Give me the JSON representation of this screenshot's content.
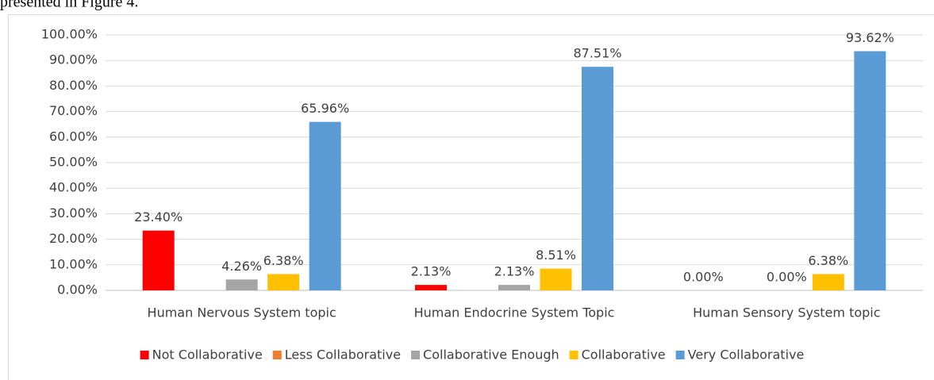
{
  "page_text": "presented in Figure 4.",
  "chart_data": {
    "type": "bar",
    "categories": [
      "Human Nervous System topic",
      "Human Endocrine System Topic",
      "Human Sensory System topic"
    ],
    "series": [
      {
        "name": "Not Collaborative",
        "color": "#ff0000",
        "values": [
          23.4,
          2.13,
          0
        ],
        "value_labels": [
          "23.40%",
          "2.13%",
          "0.00%"
        ]
      },
      {
        "name": "Less Collaborative",
        "color": "#ed7d31",
        "values": [
          0,
          0,
          0
        ]
      },
      {
        "name": "Collaborative Enough",
        "color": "#a5a5a5",
        "values": [
          4.26,
          2.13,
          0
        ],
        "value_labels": [
          "4.26%",
          "2.13%",
          "0.00%"
        ]
      },
      {
        "name": "Collaborative",
        "color": "#ffc000",
        "values": [
          6.38,
          8.51,
          6.38
        ],
        "value_labels": [
          "6.38%",
          "8.51%",
          "6.38%"
        ]
      },
      {
        "name": "Very Collaborative",
        "color": "#5b9bd5",
        "values": [
          65.96,
          87.51,
          93.62
        ],
        "value_labels": [
          "65.96%",
          "87.51%",
          "93.62%"
        ]
      }
    ],
    "ylim": [
      0,
      100
    ],
    "yticks": [
      {
        "value": 0,
        "label": "0.00%"
      },
      {
        "value": 10,
        "label": "10.00%"
      },
      {
        "value": 20,
        "label": "20.00%"
      },
      {
        "value": 30,
        "label": "30.00%"
      },
      {
        "value": 40,
        "label": "40.00%"
      },
      {
        "value": 50,
        "label": "50.00%"
      },
      {
        "value": 60,
        "label": "60.00%"
      },
      {
        "value": 70,
        "label": "70.00%"
      },
      {
        "value": 80,
        "label": "80.00%"
      },
      {
        "value": 90,
        "label": "90.00%"
      },
      {
        "value": 100,
        "label": "100.00%"
      }
    ],
    "grid": true,
    "legend": "bottom"
  }
}
